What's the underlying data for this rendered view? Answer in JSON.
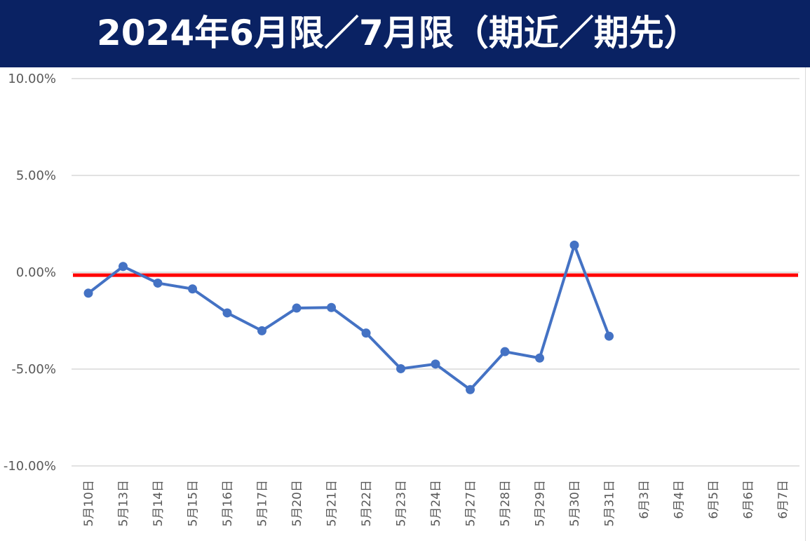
{
  "title": "2024年6月限／7月限（期近／期先）",
  "colors": {
    "title_background": "#0a2263",
    "title_text": "#ffffff",
    "series_line": "#4472c4",
    "zero_line": "#ff0000",
    "gridline": "#d9d9d9",
    "tick_text": "#595959"
  },
  "chart_data": {
    "type": "line",
    "title": "2024年6月限／7月限（期近／期先）",
    "xlabel": "",
    "ylabel": "",
    "ylim": [
      -0.1,
      0.1
    ],
    "y_ticks": [
      0.1,
      0.05,
      0.0,
      -0.05,
      -0.1
    ],
    "y_tick_labels": [
      "10.00%",
      "5.00%",
      "0.00%",
      "-5.00%",
      "-10.00%"
    ],
    "grid": true,
    "legend": "none",
    "categories": [
      "5月10日",
      "5月13日",
      "5月14日",
      "5月15日",
      "5月16日",
      "5月17日",
      "5月20日",
      "5月21日",
      "5月22日",
      "5月23日",
      "5月24日",
      "5月27日",
      "5月28日",
      "5月29日",
      "5月30日",
      "5月31日",
      "6月3日",
      "6月4日",
      "6月5日",
      "6月6日",
      "6月7日"
    ],
    "series": [
      {
        "values": [
          -0.0108,
          0.003,
          -0.0056,
          -0.0086,
          -0.021,
          -0.0302,
          -0.0185,
          -0.0182,
          -0.0314,
          -0.0498,
          -0.0474,
          -0.0606,
          -0.041,
          -0.0443,
          0.014,
          -0.033,
          null,
          null,
          null,
          null,
          null
        ]
      }
    ],
    "reference_line": {
      "y": -0.0015
    }
  }
}
